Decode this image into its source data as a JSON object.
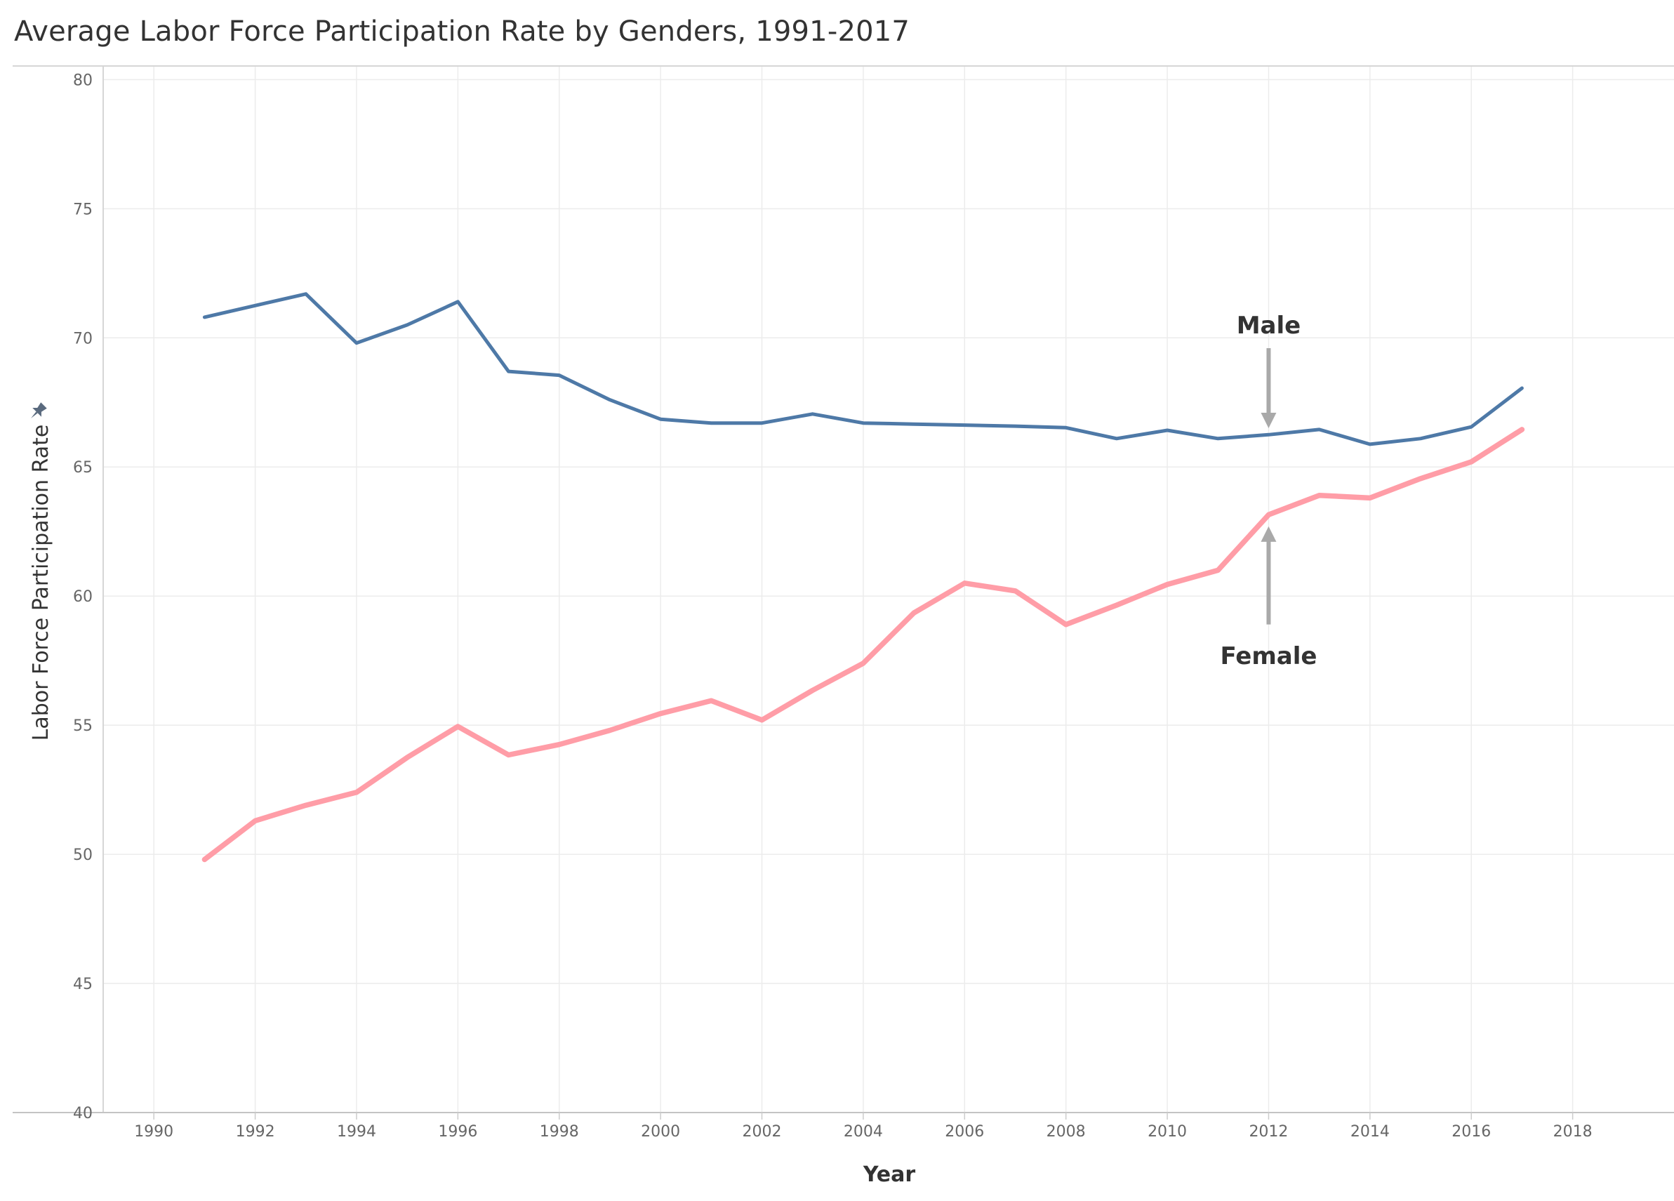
{
  "chart_data": {
    "type": "line",
    "title": "Average Labor Force Participation Rate by Genders, 1991-2017",
    "xlabel": "Year",
    "ylabel": "Labor Force Participation Rate",
    "xlim": [
      1989,
      2020
    ],
    "ylim": [
      40,
      80.5
    ],
    "x_ticks": [
      1990,
      1992,
      1994,
      1996,
      1998,
      2000,
      2002,
      2004,
      2006,
      2008,
      2010,
      2012,
      2014,
      2016,
      2018
    ],
    "y_ticks": [
      40,
      45,
      50,
      55,
      60,
      65,
      70,
      75,
      80
    ],
    "grid": true,
    "legend": "none",
    "x": [
      1991,
      1992,
      1993,
      1994,
      1995,
      1996,
      1997,
      1998,
      1999,
      2000,
      2001,
      2002,
      2003,
      2004,
      2005,
      2006,
      2007,
      2008,
      2009,
      2010,
      2011,
      2012,
      2013,
      2014,
      2015,
      2016,
      2017
    ],
    "series": [
      {
        "color": "#4e79a7",
        "values": [
          70.8,
          71.25,
          71.7,
          69.8,
          70.5,
          71.4,
          68.7,
          68.55,
          67.6,
          66.85,
          66.7,
          66.7,
          67.05,
          66.7,
          66.66,
          66.62,
          66.58,
          66.52,
          66.1,
          66.42,
          66.1,
          66.25,
          66.45,
          65.88,
          66.1,
          66.55,
          68.05
        ]
      },
      {
        "color": "#ff9da7",
        "values": [
          49.8,
          51.3,
          51.9,
          52.4,
          53.75,
          54.95,
          53.85,
          54.25,
          54.8,
          55.45,
          55.95,
          55.2,
          56.35,
          57.4,
          59.35,
          60.5,
          60.2,
          58.9,
          59.65,
          60.45,
          61.0,
          63.15,
          63.9,
          63.8,
          64.55,
          65.2,
          66.45
        ]
      }
    ],
    "annotations": [
      {
        "text": "Male",
        "x": 2012,
        "y": 70.5,
        "arrow_from": [
          2012,
          69.6
        ],
        "arrow_to": [
          2012,
          66.5
        ]
      },
      {
        "text": "Female",
        "x": 2012,
        "y": 57.7,
        "arrow_from": [
          2012,
          58.9
        ],
        "arrow_to": [
          2012,
          62.7
        ]
      }
    ]
  },
  "ui": {
    "pin_icon_color": "#5a6a7e",
    "gridline_color": "#ececec",
    "axis_line_color": "#cccccc",
    "arrow_color": "#a9a9a9"
  }
}
